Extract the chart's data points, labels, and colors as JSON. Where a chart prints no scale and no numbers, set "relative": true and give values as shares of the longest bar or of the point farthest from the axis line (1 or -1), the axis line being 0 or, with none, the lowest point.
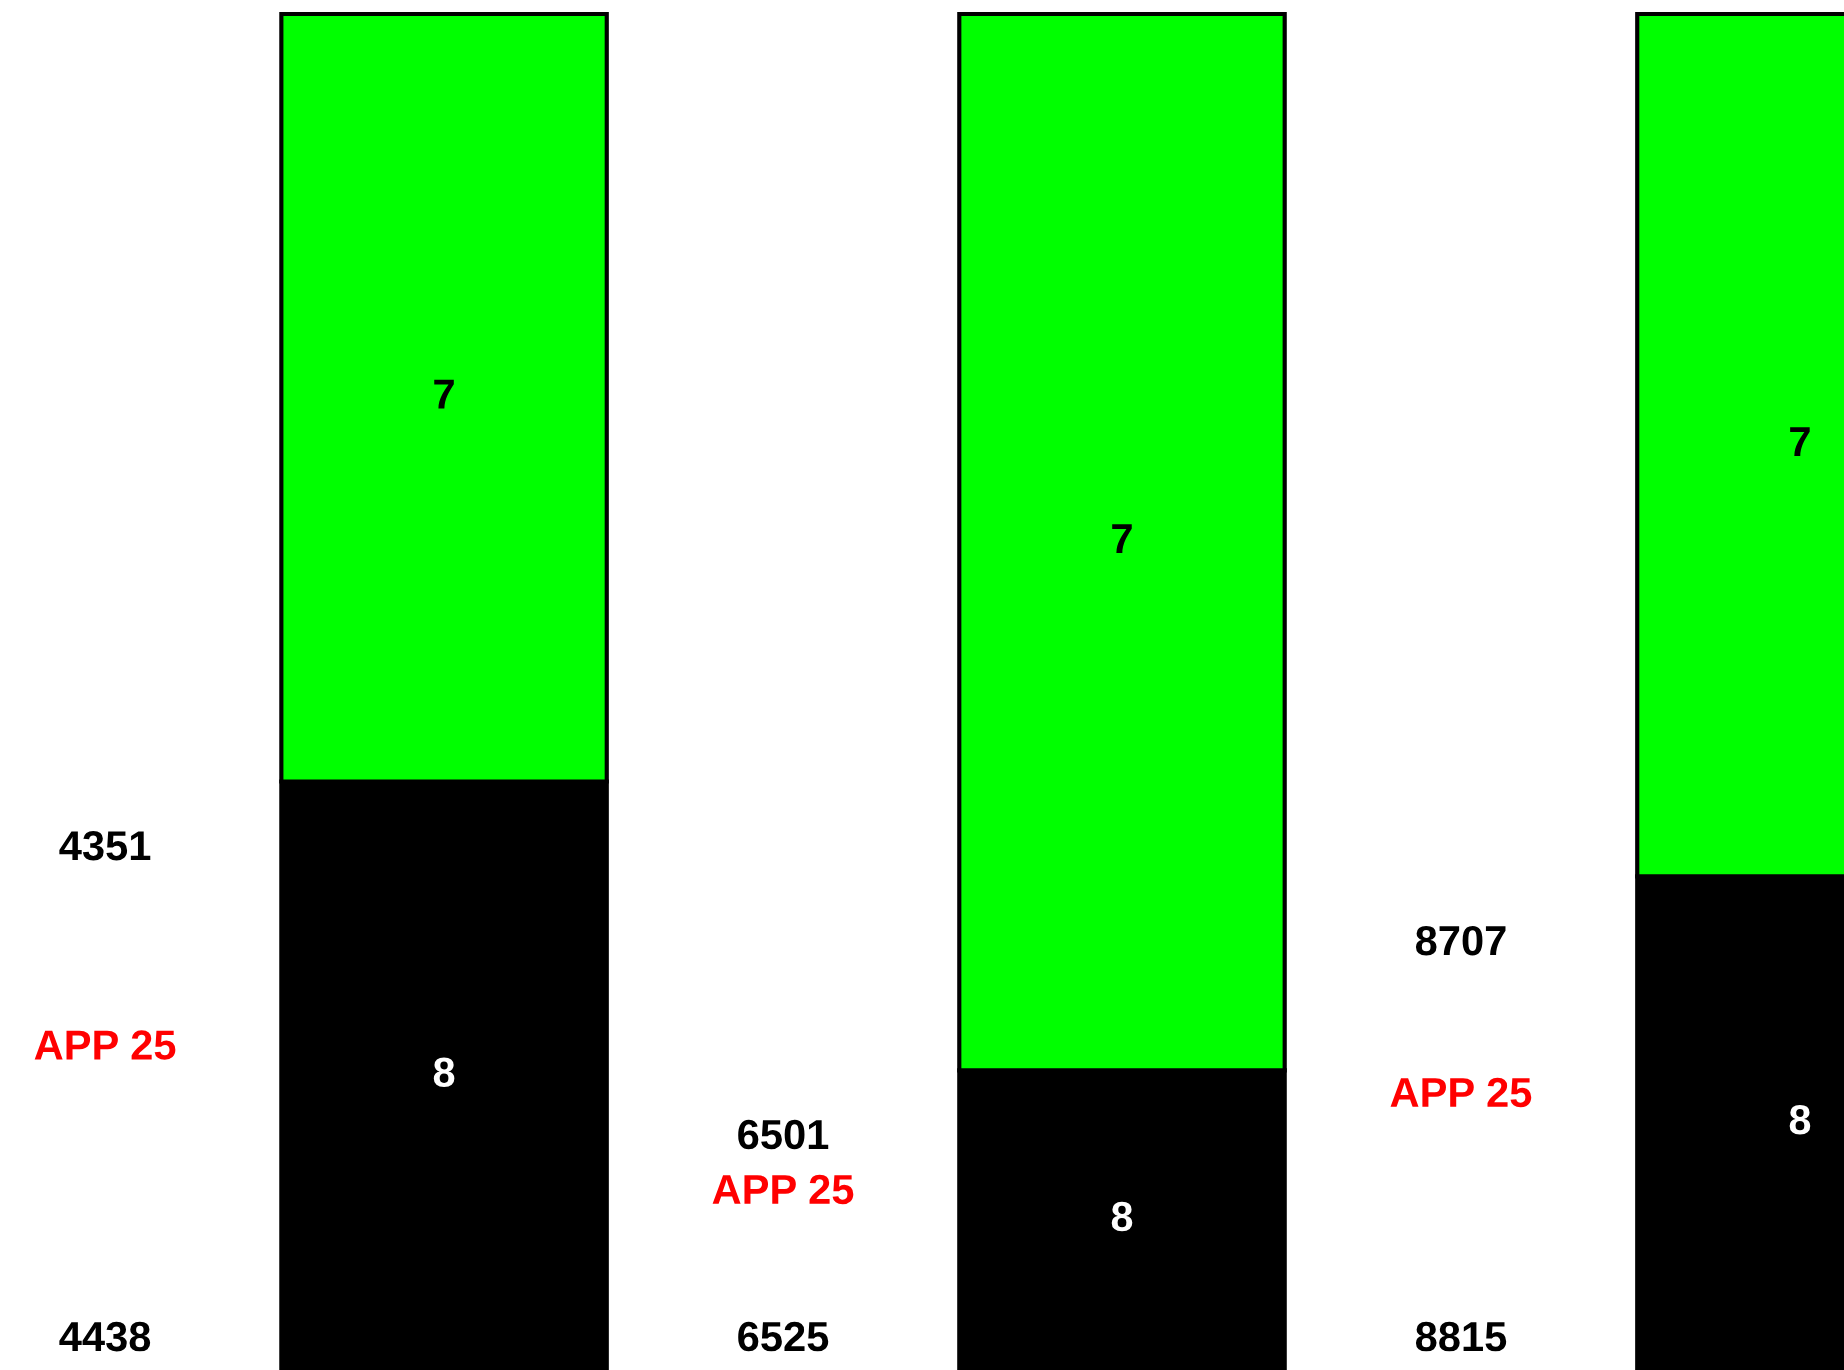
{
  "chart_data": {
    "type": "bar",
    "stacked": true,
    "relative": true,
    "categories": [
      null,
      null,
      null
    ],
    "series": [
      {
        "color": "#000000",
        "values": [
          0.434,
          0.221,
          0.364
        ]
      },
      {
        "color": "#00ff00",
        "values": [
          0.566,
          0.779,
          0.636
        ]
      }
    ],
    "annotations": [
      "4351",
      "APP 25",
      "4438",
      "8",
      "7",
      "6501",
      "APP 25",
      "6525",
      "8",
      "7",
      "8707",
      "APP 25",
      "8815",
      "8",
      "7"
    ],
    "legend": false
  }
}
